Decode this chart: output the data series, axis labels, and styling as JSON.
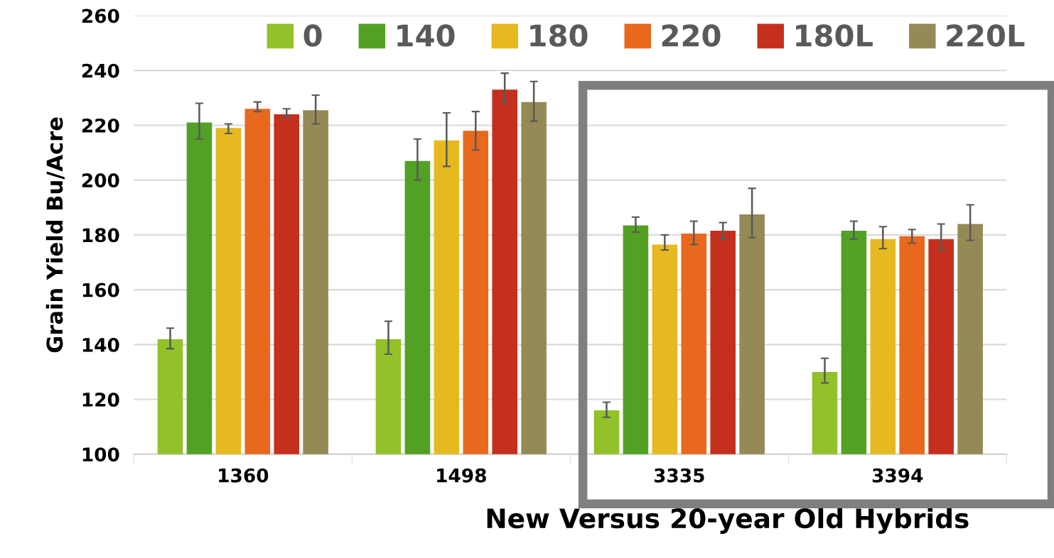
{
  "chart_data": {
    "type": "bar",
    "xlabel": "New Versus 20-year Old Hybrids",
    "ylabel": "Grain Yield Bu/Acre",
    "categories": [
      "1360",
      "1498",
      "3335",
      "3394"
    ],
    "series": [
      {
        "name": "0",
        "color": "#92c12a",
        "values": [
          142,
          142,
          116,
          130
        ],
        "errors": [
          [
            138.5,
            146
          ],
          [
            136.5,
            148.5
          ],
          [
            113.5,
            119
          ],
          [
            126,
            135
          ]
        ]
      },
      {
        "name": "140",
        "color": "#52a125",
        "values": [
          221,
          207,
          183.5,
          181.5
        ],
        "errors": [
          [
            215,
            228
          ],
          [
            200,
            215
          ],
          [
            181,
            186.5
          ],
          [
            178.5,
            185
          ]
        ]
      },
      {
        "name": "180",
        "color": "#e6b920",
        "values": [
          219,
          214.5,
          176.5,
          178.5
        ],
        "errors": [
          [
            217,
            220.5
          ],
          [
            205,
            224.5
          ],
          [
            174.5,
            180
          ],
          [
            175,
            183
          ]
        ]
      },
      {
        "name": "220",
        "color": "#e8681e",
        "values": [
          226,
          218,
          180.5,
          179.5
        ],
        "errors": [
          [
            225,
            228.5
          ],
          [
            211,
            225
          ],
          [
            176.5,
            185
          ],
          [
            177,
            182
          ]
        ]
      },
      {
        "name": "180L",
        "color": "#c5301e",
        "values": [
          224,
          233,
          181.5,
          178.5
        ],
        "errors": [
          [
            223,
            226
          ],
          [
            228,
            239
          ],
          [
            178.5,
            184.5
          ],
          [
            174.5,
            184
          ]
        ]
      },
      {
        "name": "220L",
        "color": "#958a55",
        "values": [
          225.5,
          228.5,
          187.5,
          184
        ],
        "errors": [
          [
            220.5,
            231
          ],
          [
            221.5,
            236
          ],
          [
            179,
            197
          ],
          [
            178,
            191
          ]
        ]
      }
    ],
    "ylim": [
      100,
      260
    ],
    "yticks": [
      100,
      120,
      140,
      160,
      180,
      200,
      220,
      240,
      260
    ],
    "grid": "y",
    "legend": "top right"
  }
}
